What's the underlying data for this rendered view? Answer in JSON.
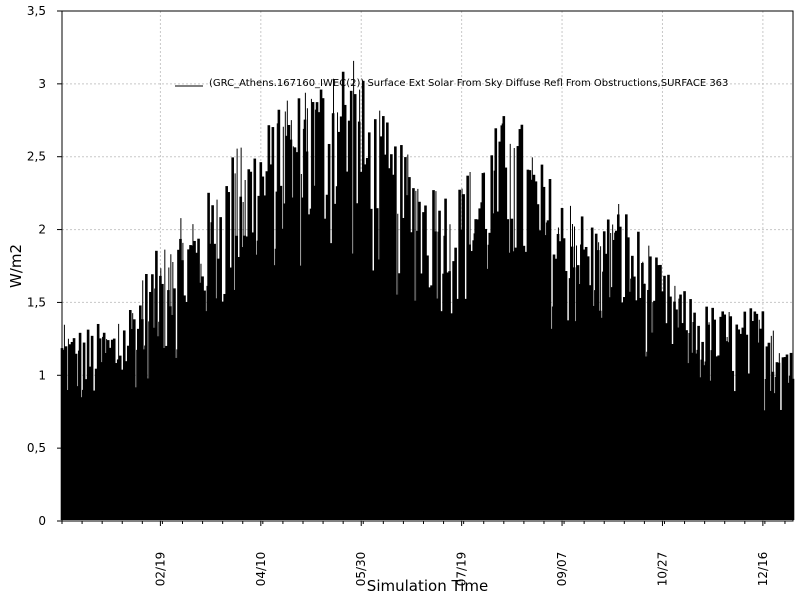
{
  "chart_data": {
    "type": "area",
    "title": "",
    "xlabel": "Simulation Time",
    "ylabel": "W/m2",
    "ylim": [
      0,
      3.5
    ],
    "xlim": [
      "01/01",
      "12/31"
    ],
    "grid": true,
    "legend": {
      "placement": "top",
      "entries": [
        "(GRC_Athens.167160_IWEC(2)) Surface Ext Solar From Sky Diffuse Refl From Obstructions,SURFACE 363"
      ]
    },
    "y_ticks": [
      {
        "value": 0,
        "label": "0"
      },
      {
        "value": 0.5,
        "label": "0,5"
      },
      {
        "value": 1,
        "label": "1"
      },
      {
        "value": 1.5,
        "label": "1,5"
      },
      {
        "value": 2,
        "label": "2"
      },
      {
        "value": 2.5,
        "label": "2,5"
      },
      {
        "value": 3,
        "label": "3"
      },
      {
        "value": 3.5,
        "label": "3,5"
      }
    ],
    "x_ticks": [
      {
        "value": "02/19",
        "label": "02/19"
      },
      {
        "value": "04/10",
        "label": "04/10"
      },
      {
        "value": "05/30",
        "label": "05/30"
      },
      {
        "value": "07/19",
        "label": "07/19"
      },
      {
        "value": "09/07",
        "label": "09/07"
      },
      {
        "value": "10/27",
        "label": "10/27"
      },
      {
        "value": "12/16",
        "label": "12/16"
      }
    ],
    "series": [
      {
        "name": "(GRC_Athens.167160_IWEC(2)) Surface Ext Solar From Sky Diffuse Refl From Obstructions,SURFACE 363",
        "color": "#000000",
        "x": [
          "01/15",
          "01/29",
          "02/12",
          "02/26",
          "03/12",
          "03/26",
          "04/09",
          "04/23",
          "05/07",
          "05/21",
          "06/04",
          "06/18",
          "07/02",
          "07/16",
          "07/30",
          "08/13",
          "08/27",
          "09/10",
          "09/24",
          "10/08",
          "10/22",
          "11/05",
          "11/19",
          "12/03",
          "12/17",
          "12/31"
        ],
        "values": [
          1.35,
          1.4,
          1.75,
          2.05,
          2.2,
          2.55,
          2.7,
          2.9,
          3.1,
          3.3,
          2.95,
          2.6,
          2.4,
          2.3,
          2.6,
          2.9,
          2.5,
          2.2,
          2.1,
          2.2,
          1.85,
          1.6,
          1.5,
          1.45,
          1.5,
          1.35
        ],
        "daily_low": [
          0.5,
          0.55,
          0.65,
          0.75,
          0.85,
          0.9,
          1.2,
          1.25,
          1.15,
          1.2,
          1.1,
          1.05,
          1.1,
          1.05,
          1.0,
          1.05,
          0.95,
          0.9,
          0.9,
          0.9,
          0.8,
          0.75,
          0.6,
          0.55,
          0.5,
          0.45
        ]
      }
    ]
  }
}
